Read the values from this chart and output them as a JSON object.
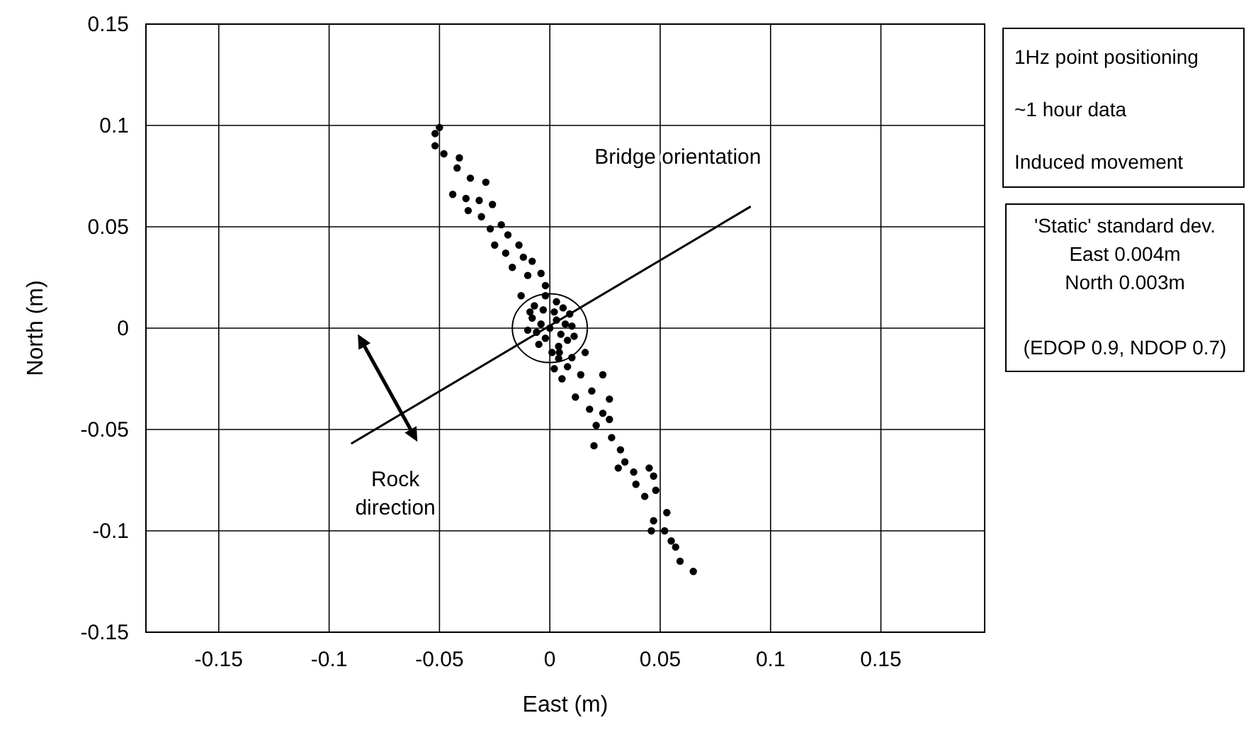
{
  "chart_data": {
    "type": "scatter",
    "xlabel": "East (m)",
    "ylabel": "North (m)",
    "xlim": [
      -0.183,
      0.197
    ],
    "xticks": [
      -0.15,
      -0.1,
      -0.05,
      0,
      0.05,
      0.1,
      0.15
    ],
    "ylim": [
      -0.15,
      0.15
    ],
    "yticks": [
      -0.15,
      -0.1,
      -0.05,
      0,
      0.05,
      0.1,
      0.15
    ],
    "grid": true,
    "marker": "circle",
    "series": [
      {
        "color": "#000000",
        "x": [
          -0.05,
          -0.052,
          -0.052,
          -0.048,
          -0.042,
          -0.041,
          -0.036,
          -0.029,
          -0.044,
          -0.038,
          -0.032,
          -0.026,
          -0.037,
          -0.031,
          -0.022,
          -0.027,
          -0.019,
          -0.025,
          -0.014,
          -0.02,
          -0.012,
          -0.017,
          -0.008,
          -0.01,
          -0.004,
          -0.002,
          -0.013,
          0,
          0.003,
          -0.004,
          0.005,
          -0.002,
          0.007,
          -0.006,
          0.002,
          -0.003,
          0.008,
          -0.008,
          0.004,
          -0.005,
          0.01,
          -0.01,
          0.001,
          0.006,
          -0.007,
          0.011,
          0.003,
          -0.002,
          0.004,
          0.009,
          -0.009,
          0.0043,
          0.01,
          0.016,
          0.002,
          0.008,
          0.0055,
          0.014,
          0.024,
          0.0116,
          0.019,
          0.027,
          0.018,
          0.024,
          0.021,
          0.027,
          0.02,
          0.028,
          0.032,
          0.034,
          0.031,
          0.038,
          0.045,
          0.039,
          0.047,
          0.043,
          0.048,
          0.053,
          0.047,
          0.046,
          0.052,
          0.055,
          0.057,
          0.059,
          0.065
        ],
        "values": [
          0.099,
          0.096,
          0.09,
          0.086,
          0.079,
          0.084,
          0.074,
          0.072,
          0.066,
          0.064,
          0.063,
          0.061,
          0.058,
          0.055,
          0.051,
          0.049,
          0.046,
          0.041,
          0.041,
          0.037,
          0.035,
          0.03,
          0.033,
          0.026,
          0.027,
          0.021,
          0.016,
          0,
          0.004,
          0.002,
          -0.003,
          -0.005,
          0.002,
          -0.002,
          0.008,
          0.009,
          -0.006,
          0.005,
          -0.009,
          -0.008,
          0.001,
          -0.001,
          -0.012,
          0.01,
          0.011,
          -0.004,
          0.013,
          0.016,
          -0.015,
          0.007,
          0.008,
          -0.012,
          -0.0145,
          -0.012,
          -0.02,
          -0.019,
          -0.025,
          -0.023,
          -0.023,
          -0.034,
          -0.031,
          -0.035,
          -0.04,
          -0.042,
          -0.048,
          -0.045,
          -0.058,
          -0.054,
          -0.06,
          -0.066,
          -0.069,
          -0.071,
          -0.069,
          -0.077,
          -0.073,
          -0.083,
          -0.08,
          -0.091,
          -0.095,
          -0.1,
          -0.1,
          -0.105,
          -0.108,
          -0.115,
          -0.12
        ]
      },
      {
        "type": "line",
        "marker": "none",
        "color": "#000000",
        "x": [
          -0.09,
          0.091
        ],
        "values": [
          -0.057,
          0.06
        ]
      }
    ],
    "annotations": [
      "Bridge orientation",
      "Rock direction",
      "1Hz point positioning",
      "~1 hour data",
      "Induced movement",
      "'Static' standard dev.",
      "East 0.004m",
      "North 0.003m",
      "(EDOP 0.9, NDOP 0.7)"
    ]
  }
}
